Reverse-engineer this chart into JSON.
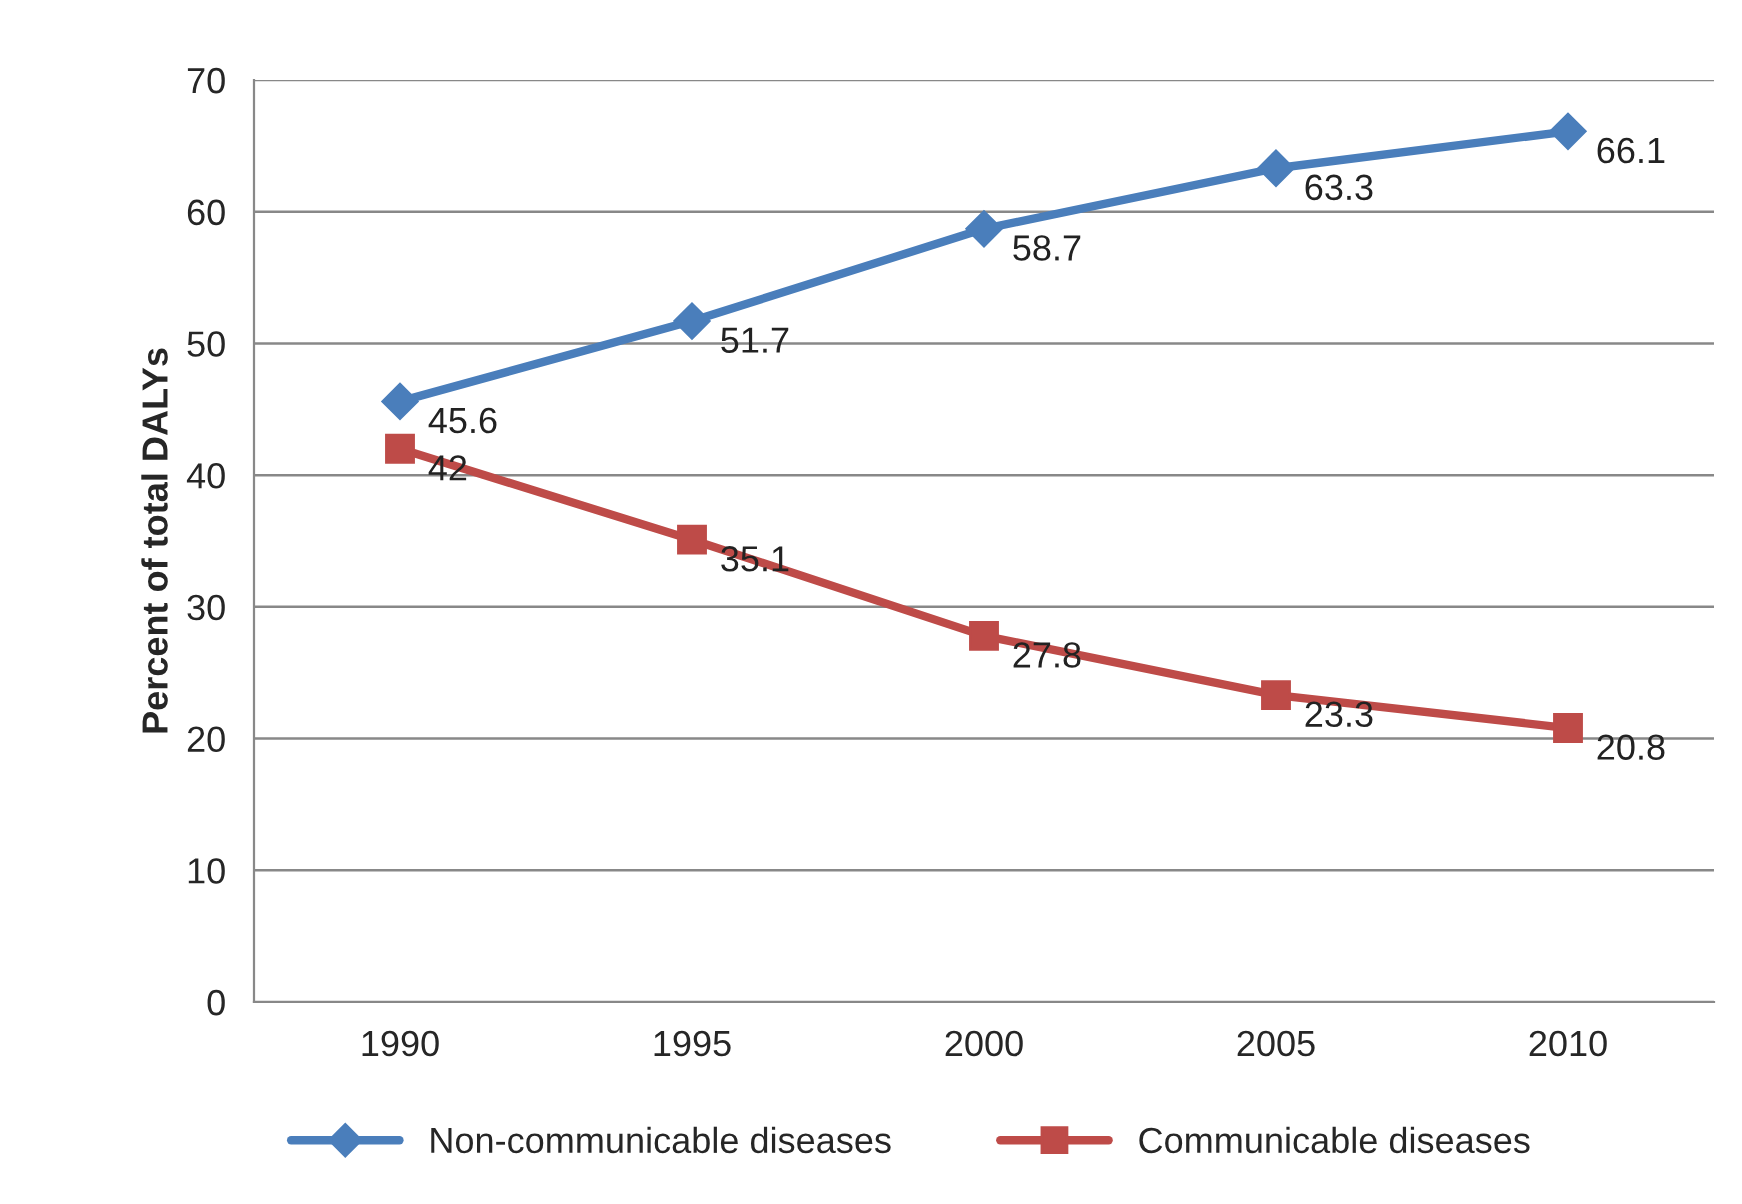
{
  "chart_data": {
    "type": "line",
    "ylabel": "Percent of total DALYs",
    "categories": [
      "1990",
      "1995",
      "2000",
      "2005",
      "2010"
    ],
    "series": [
      {
        "name": "Non-communicable diseases",
        "color": "#4a7ebb",
        "values": [
          45.6,
          51.7,
          58.7,
          63.3,
          66.1
        ],
        "marker": "diamond"
      },
      {
        "name": "Communicable diseases",
        "color": "#be4b48",
        "values": [
          42,
          35.1,
          27.8,
          23.3,
          20.8
        ],
        "marker": "square"
      }
    ],
    "ylim": [
      0,
      70
    ],
    "yticks": [
      0,
      10,
      20,
      30,
      40,
      50,
      60,
      70
    ],
    "grid": "y",
    "legend": "bottom",
    "data_labels": true,
    "line_style": "solid"
  }
}
